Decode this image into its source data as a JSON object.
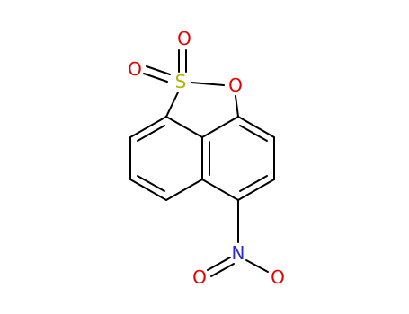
{
  "atoms": [
    {
      "label": "O"
    },
    {
      "label": "O"
    },
    {
      "label": "S"
    },
    {
      "label": "O"
    },
    {
      "label": "N"
    },
    {
      "label": "O"
    },
    {
      "label": "O"
    }
  ]
}
